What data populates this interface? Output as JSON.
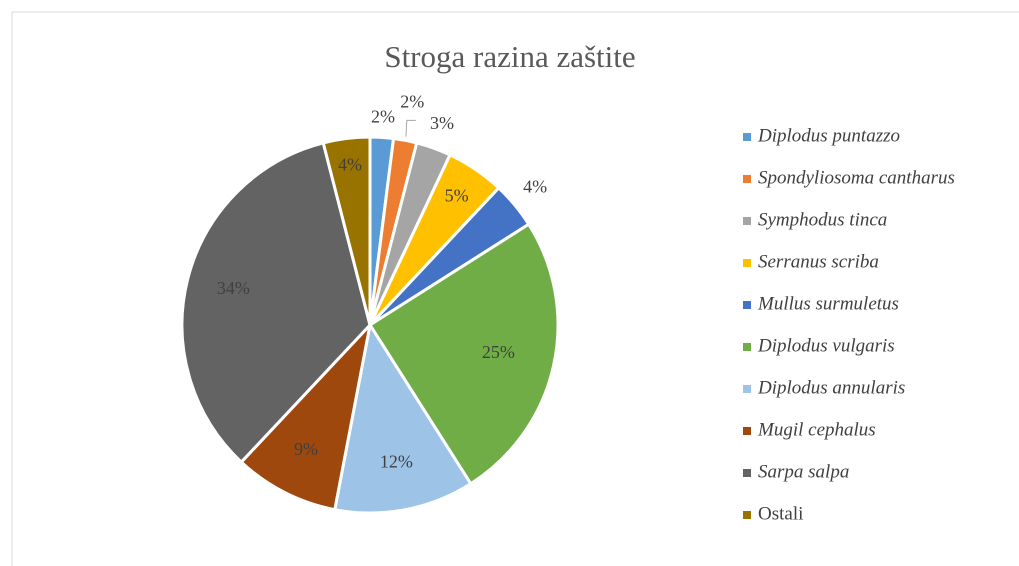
{
  "chart_data": {
    "type": "pie",
    "title": "Stroga razina zaštite",
    "categories": [
      "Diplodus puntazzo",
      "Spondyliosoma cantharus",
      "Symphodus tinca",
      "Serranus scriba",
      "Mullus surmuletus",
      "Diplodus vulgaris",
      "Diplodus annularis",
      "Mugil cephalus",
      "Sarpa salpa",
      "Ostali"
    ],
    "values": [
      2,
      2,
      3,
      5,
      4,
      25,
      12,
      9,
      34,
      4
    ],
    "value_labels": [
      "2%",
      "2%",
      "3%",
      "5%",
      "4%",
      "25%",
      "12%",
      "9%",
      "34%",
      "4%"
    ],
    "colors": [
      "#5b9bd5",
      "#ed7d31",
      "#a5a5a5",
      "#ffc000",
      "#4472c4",
      "#70ad47",
      "#9dc3e6",
      "#9e480e",
      "#636363",
      "#997300"
    ],
    "legend": "right"
  }
}
